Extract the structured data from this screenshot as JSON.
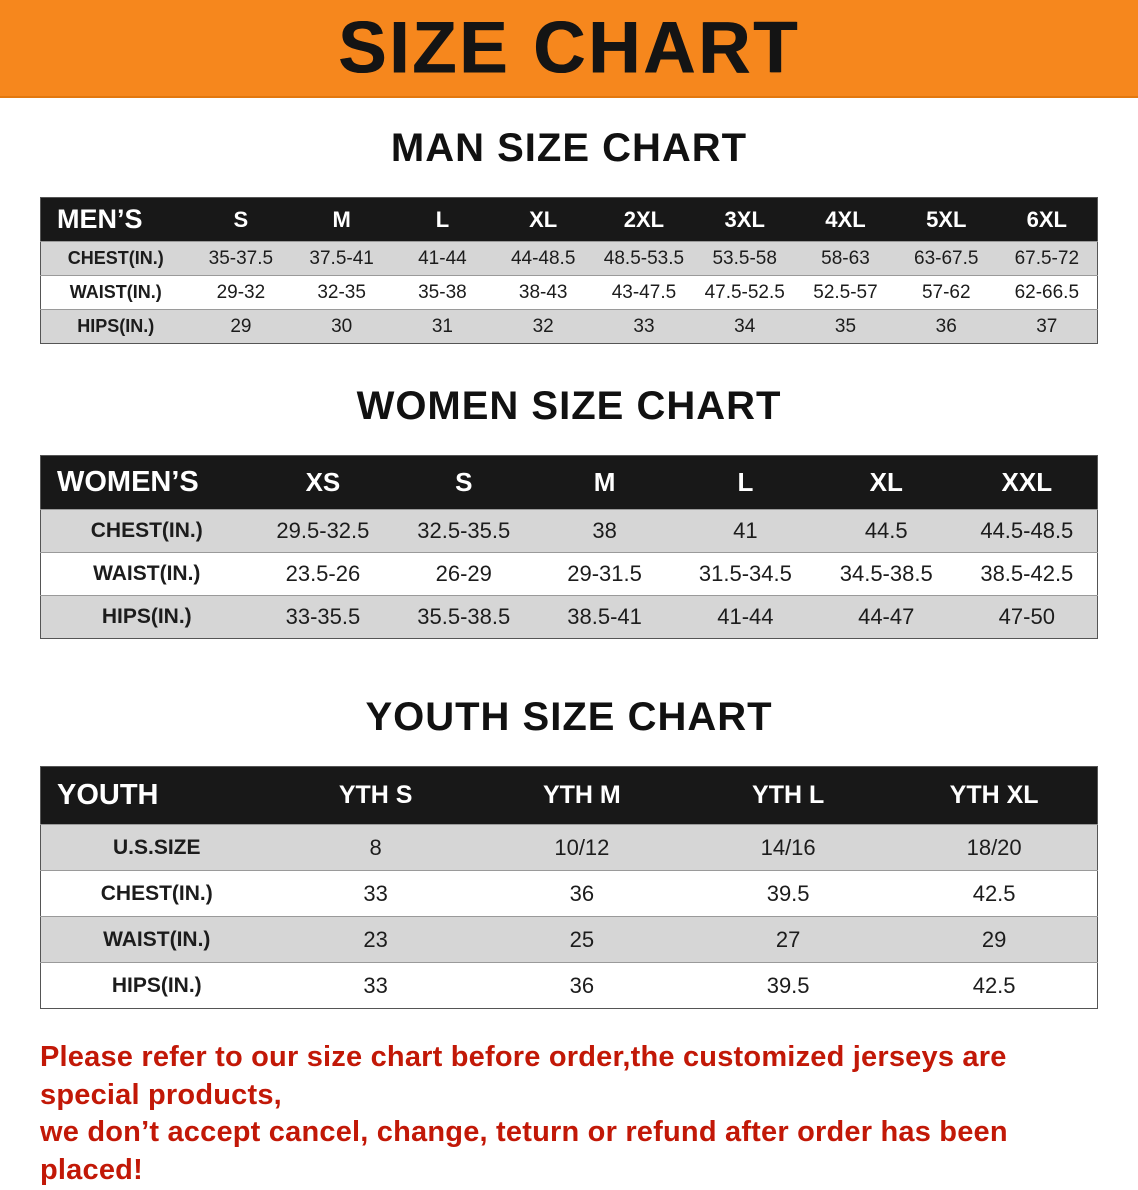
{
  "banner": {
    "title": "SIZE CHART",
    "bg_color": "#F6871D",
    "text_color": "#141414"
  },
  "sections": [
    {
      "heading": "MAN SIZE CHART",
      "table": {
        "label": "MEN’S",
        "sizes": [
          "S",
          "M",
          "L",
          "XL",
          "2XL",
          "3XL",
          "4XL",
          "5XL",
          "6XL"
        ],
        "rows": [
          {
            "label": "CHEST(IN.)",
            "values": [
              "35-37.5",
              "37.5-41",
              "41-44",
              "44-48.5",
              "48.5-53.5",
              "53.5-58",
              "58-63",
              "63-67.5",
              "67.5-72"
            ]
          },
          {
            "label": "WAIST(IN.)",
            "values": [
              "29-32",
              "32-35",
              "35-38",
              "38-43",
              "43-47.5",
              "47.5-52.5",
              "52.5-57",
              "57-62",
              "62-66.5"
            ]
          },
          {
            "label": "HIPS(IN.)",
            "values": [
              "29",
              "30",
              "31",
              "32",
              "33",
              "34",
              "35",
              "36",
              "37"
            ]
          }
        ]
      }
    },
    {
      "heading": "WOMEN SIZE CHART",
      "table": {
        "label": "WOMEN’S",
        "sizes": [
          "XS",
          "S",
          "M",
          "L",
          "XL",
          "XXL"
        ],
        "rows": [
          {
            "label": "CHEST(IN.)",
            "values": [
              "29.5-32.5",
              "32.5-35.5",
              "38",
              "41",
              "44.5",
              "44.5-48.5"
            ]
          },
          {
            "label": "WAIST(IN.)",
            "values": [
              "23.5-26",
              "26-29",
              "29-31.5",
              "31.5-34.5",
              "34.5-38.5",
              "38.5-42.5"
            ]
          },
          {
            "label": "HIPS(IN.)",
            "values": [
              "33-35.5",
              "35.5-38.5",
              "38.5-41",
              "41-44",
              "44-47",
              "47-50"
            ]
          }
        ]
      }
    },
    {
      "heading": "YOUTH SIZE CHART",
      "table": {
        "label": "YOUTH",
        "sizes": [
          "YTH S",
          "YTH M",
          "YTH L",
          "YTH XL"
        ],
        "rows": [
          {
            "label": "U.S.SIZE",
            "values": [
              "8",
              "10/12",
              "14/16",
              "18/20"
            ]
          },
          {
            "label": "CHEST(IN.)",
            "values": [
              "33",
              "36",
              "39.5",
              "42.5"
            ]
          },
          {
            "label": "WAIST(IN.)",
            "values": [
              "23",
              "25",
              "27",
              "29"
            ]
          },
          {
            "label": "HIPS(IN.)",
            "values": [
              "33",
              "36",
              "39.5",
              "42.5"
            ]
          }
        ]
      }
    }
  ],
  "footer": {
    "lines": [
      "Please refer to our size chart before order,the customized jerseys are special products,",
      "we don’t accept cancel, change, teturn or refund after order has been placed!"
    ],
    "color": "#C21807"
  }
}
